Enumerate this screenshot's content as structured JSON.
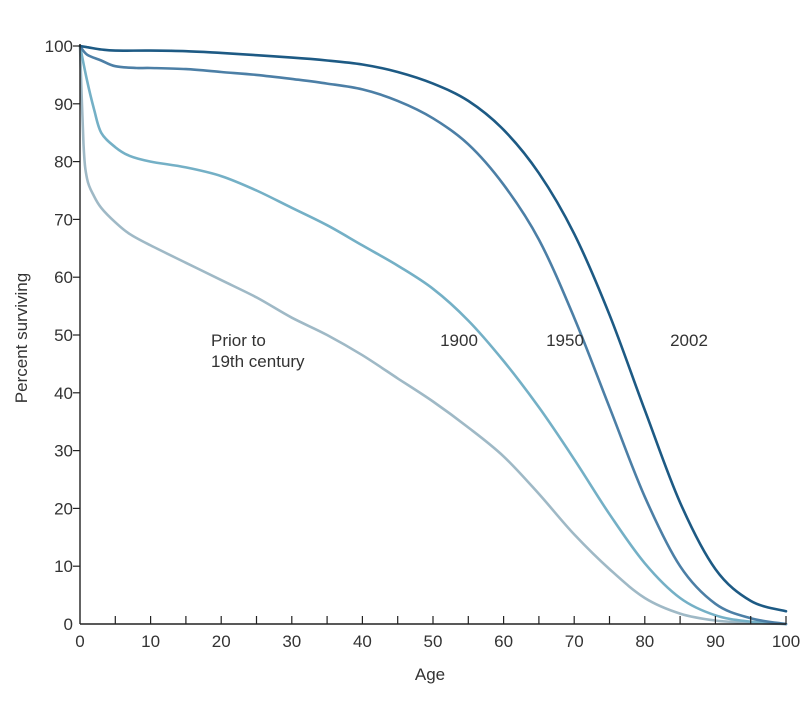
{
  "chart_data": {
    "type": "line",
    "title": "",
    "xlabel": "Age",
    "ylabel": "Percent surviving",
    "xlim": [
      0,
      100
    ],
    "ylim": [
      0,
      100
    ],
    "x_ticks": [
      0,
      10,
      20,
      30,
      40,
      50,
      60,
      70,
      80,
      90,
      100
    ],
    "y_ticks": [
      0,
      10,
      20,
      30,
      40,
      50,
      60,
      70,
      80,
      90,
      100
    ],
    "grid": false,
    "legend": "none (series labeled directly on plot)",
    "series": [
      {
        "name": "Prior to 19th century",
        "color": "#9fb9c6",
        "points": [
          [
            0,
            100
          ],
          [
            0.5,
            83
          ],
          [
            1,
            77
          ],
          [
            2,
            74
          ],
          [
            3,
            72
          ],
          [
            5,
            69.5
          ],
          [
            7,
            67.5
          ],
          [
            10,
            65.5
          ],
          [
            15,
            62.5
          ],
          [
            20,
            59.5
          ],
          [
            25,
            56.5
          ],
          [
            30,
            53
          ],
          [
            35,
            50
          ],
          [
            40,
            46.5
          ],
          [
            45,
            42.5
          ],
          [
            50,
            38.5
          ],
          [
            55,
            34
          ],
          [
            60,
            29
          ],
          [
            65,
            22.5
          ],
          [
            70,
            15.5
          ],
          [
            75,
            9.5
          ],
          [
            80,
            4.5
          ],
          [
            85,
            1.8
          ],
          [
            90,
            0.6
          ],
          [
            95,
            0.2
          ],
          [
            100,
            0
          ]
        ]
      },
      {
        "name": "1900",
        "color": "#74b0c6",
        "points": [
          [
            0,
            100
          ],
          [
            1,
            94
          ],
          [
            2,
            89
          ],
          [
            3,
            85
          ],
          [
            5,
            82.5
          ],
          [
            7,
            81
          ],
          [
            10,
            80
          ],
          [
            15,
            79
          ],
          [
            20,
            77.5
          ],
          [
            25,
            75
          ],
          [
            30,
            72
          ],
          [
            35,
            69
          ],
          [
            40,
            65.5
          ],
          [
            45,
            62
          ],
          [
            50,
            58
          ],
          [
            55,
            52.5
          ],
          [
            60,
            45.5
          ],
          [
            65,
            37.5
          ],
          [
            70,
            28.5
          ],
          [
            75,
            19
          ],
          [
            80,
            10.5
          ],
          [
            85,
            4.5
          ],
          [
            90,
            1.5
          ],
          [
            95,
            0.4
          ],
          [
            100,
            0
          ]
        ]
      },
      {
        "name": "1950",
        "color": "#4c7fa6",
        "points": [
          [
            0,
            100
          ],
          [
            1,
            98.5
          ],
          [
            3,
            97.5
          ],
          [
            5,
            96.5
          ],
          [
            8,
            96.2
          ],
          [
            10,
            96.2
          ],
          [
            15,
            96
          ],
          [
            20,
            95.5
          ],
          [
            25,
            95
          ],
          [
            30,
            94.3
          ],
          [
            35,
            93.5
          ],
          [
            40,
            92.5
          ],
          [
            45,
            90.5
          ],
          [
            50,
            87.5
          ],
          [
            55,
            83
          ],
          [
            60,
            76
          ],
          [
            65,
            66.5
          ],
          [
            70,
            53
          ],
          [
            75,
            37.5
          ],
          [
            80,
            22
          ],
          [
            85,
            10
          ],
          [
            90,
            3.5
          ],
          [
            95,
            1
          ],
          [
            100,
            0
          ]
        ]
      },
      {
        "name": "2002",
        "color": "#1d5a84",
        "points": [
          [
            0,
            100
          ],
          [
            1,
            99.8
          ],
          [
            3,
            99.4
          ],
          [
            5,
            99.2
          ],
          [
            10,
            99.2
          ],
          [
            15,
            99.1
          ],
          [
            20,
            98.8
          ],
          [
            25,
            98.4
          ],
          [
            30,
            98
          ],
          [
            35,
            97.5
          ],
          [
            40,
            96.8
          ],
          [
            45,
            95.5
          ],
          [
            50,
            93.5
          ],
          [
            55,
            90.5
          ],
          [
            60,
            85.5
          ],
          [
            65,
            78
          ],
          [
            70,
            67.5
          ],
          [
            75,
            53.5
          ],
          [
            80,
            37
          ],
          [
            85,
            21
          ],
          [
            90,
            9.5
          ],
          [
            95,
            4
          ],
          [
            100,
            2.2
          ]
        ]
      }
    ],
    "annotations": [
      {
        "series": "Prior to 19th century",
        "lines": [
          "Prior to",
          "19th century"
        ]
      },
      {
        "series": "1900",
        "lines": [
          "1900"
        ]
      },
      {
        "series": "1950",
        "lines": [
          "1950"
        ]
      },
      {
        "series": "2002",
        "lines": [
          "2002"
        ]
      }
    ]
  }
}
